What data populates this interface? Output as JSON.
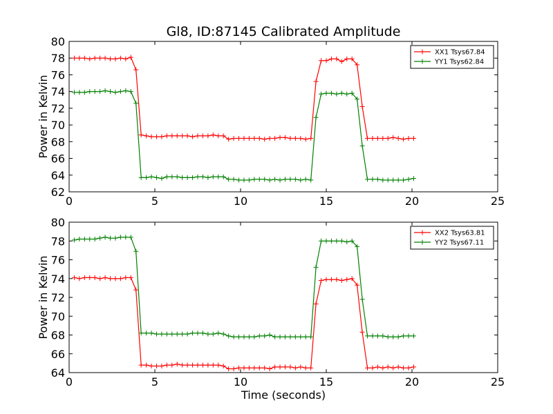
{
  "title": "Gl8, ID:87145 Calibrated Amplitude",
  "xlabel": "Time (seconds)",
  "chart_data": [
    {
      "type": "line",
      "ylabel": "Power in Kelvin",
      "xlim": [
        0,
        25
      ],
      "ylim": [
        62,
        80
      ],
      "xticks": [
        0,
        5,
        10,
        15,
        20,
        25
      ],
      "yticks": [
        62,
        64,
        66,
        68,
        70,
        72,
        74,
        76,
        78,
        80
      ],
      "legend_position": "top-right",
      "x": [
        0.3,
        0.6,
        0.9,
        1.2,
        1.5,
        1.8,
        2.1,
        2.4,
        2.7,
        3.0,
        3.3,
        3.6,
        3.9,
        4.2,
        4.5,
        4.8,
        5.1,
        5.4,
        5.7,
        6.0,
        6.3,
        6.6,
        6.9,
        7.2,
        7.5,
        7.8,
        8.1,
        8.4,
        8.7,
        9.0,
        9.3,
        9.6,
        9.9,
        10.2,
        10.5,
        10.8,
        11.1,
        11.4,
        11.7,
        12.0,
        12.3,
        12.6,
        12.9,
        13.2,
        13.5,
        13.8,
        14.1,
        14.4,
        14.7,
        15.0,
        15.3,
        15.6,
        15.9,
        16.2,
        16.5,
        16.8,
        17.1,
        17.4,
        17.7,
        18.0,
        18.3,
        18.6,
        18.9,
        19.2,
        19.5,
        19.8,
        20.1
      ],
      "series": [
        {
          "name": "XX1 Tsys67.84",
          "color": "#ff0000",
          "values": [
            78.0,
            78.0,
            78.0,
            77.9,
            78.0,
            78.0,
            78.0,
            77.9,
            77.9,
            78.0,
            77.9,
            78.1,
            76.6,
            68.8,
            68.7,
            68.6,
            68.6,
            68.6,
            68.7,
            68.7,
            68.7,
            68.7,
            68.7,
            68.6,
            68.7,
            68.7,
            68.7,
            68.8,
            68.7,
            68.7,
            68.3,
            68.4,
            68.4,
            68.4,
            68.4,
            68.4,
            68.4,
            68.3,
            68.4,
            68.4,
            68.5,
            68.5,
            68.4,
            68.4,
            68.4,
            68.3,
            68.4,
            75.2,
            77.7,
            77.7,
            77.9,
            77.9,
            77.6,
            77.9,
            77.9,
            77.2,
            72.2,
            68.4,
            68.4,
            68.4,
            68.4,
            68.4,
            68.5,
            68.4,
            68.3,
            68.4,
            68.4
          ]
        },
        {
          "name": "YY1 Tsys62.84",
          "color": "#008000",
          "values": [
            73.9,
            73.9,
            73.9,
            74.0,
            74.0,
            74.0,
            74.1,
            74.0,
            73.9,
            74.0,
            74.1,
            74.0,
            72.6,
            63.7,
            63.7,
            63.8,
            63.7,
            63.6,
            63.8,
            63.8,
            63.8,
            63.7,
            63.7,
            63.7,
            63.8,
            63.8,
            63.7,
            63.8,
            63.8,
            63.8,
            63.5,
            63.5,
            63.4,
            63.4,
            63.4,
            63.5,
            63.5,
            63.5,
            63.4,
            63.5,
            63.4,
            63.5,
            63.5,
            63.5,
            63.4,
            63.5,
            63.4,
            70.9,
            73.7,
            73.8,
            73.8,
            73.7,
            73.8,
            73.7,
            73.8,
            73.1,
            67.5,
            63.5,
            63.5,
            63.5,
            63.4,
            63.4,
            63.4,
            63.4,
            63.4,
            63.5,
            63.6
          ]
        }
      ]
    },
    {
      "type": "line",
      "ylabel": "Power in Kelvin",
      "xlim": [
        0,
        25
      ],
      "ylim": [
        64,
        80
      ],
      "xticks": [
        0,
        5,
        10,
        15,
        20,
        25
      ],
      "yticks": [
        64,
        66,
        68,
        70,
        72,
        74,
        76,
        78,
        80
      ],
      "legend_position": "top-right",
      "x": [
        0.3,
        0.6,
        0.9,
        1.2,
        1.5,
        1.8,
        2.1,
        2.4,
        2.7,
        3.0,
        3.3,
        3.6,
        3.9,
        4.2,
        4.5,
        4.8,
        5.1,
        5.4,
        5.7,
        6.0,
        6.3,
        6.6,
        6.9,
        7.2,
        7.5,
        7.8,
        8.1,
        8.4,
        8.7,
        9.0,
        9.3,
        9.6,
        9.9,
        10.2,
        10.5,
        10.8,
        11.1,
        11.4,
        11.7,
        12.0,
        12.3,
        12.6,
        12.9,
        13.2,
        13.5,
        13.8,
        14.1,
        14.4,
        14.7,
        15.0,
        15.3,
        15.6,
        15.9,
        16.2,
        16.5,
        16.8,
        17.1,
        17.4,
        17.7,
        18.0,
        18.3,
        18.6,
        18.9,
        19.2,
        19.5,
        19.8,
        20.1
      ],
      "series": [
        {
          "name": "XX2 Tsys63.81",
          "color": "#ff0000",
          "values": [
            74.1,
            74.0,
            74.1,
            74.1,
            74.1,
            74.0,
            74.1,
            74.0,
            74.0,
            74.0,
            74.1,
            74.1,
            72.8,
            64.8,
            64.8,
            64.7,
            64.7,
            64.7,
            64.8,
            64.8,
            64.9,
            64.8,
            64.8,
            64.8,
            64.8,
            64.8,
            64.8,
            64.8,
            64.8,
            64.7,
            64.4,
            64.4,
            64.5,
            64.5,
            64.5,
            64.5,
            64.5,
            64.5,
            64.4,
            64.6,
            64.6,
            64.6,
            64.6,
            64.5,
            64.6,
            64.5,
            64.5,
            71.3,
            73.8,
            73.9,
            73.9,
            73.9,
            73.8,
            73.9,
            74.0,
            73.3,
            68.3,
            64.5,
            64.5,
            64.6,
            64.5,
            64.6,
            64.5,
            64.6,
            64.5,
            64.5,
            64.6
          ]
        },
        {
          "name": "YY2 Tsys67.11",
          "color": "#008000",
          "values": [
            78.1,
            78.2,
            78.2,
            78.2,
            78.2,
            78.3,
            78.4,
            78.3,
            78.3,
            78.4,
            78.4,
            78.4,
            76.9,
            68.2,
            68.2,
            68.2,
            68.1,
            68.1,
            68.1,
            68.1,
            68.1,
            68.1,
            68.1,
            68.2,
            68.2,
            68.2,
            68.1,
            68.1,
            68.2,
            68.1,
            67.9,
            67.8,
            67.8,
            67.8,
            67.8,
            67.8,
            67.9,
            67.9,
            68.0,
            67.8,
            67.8,
            67.8,
            67.8,
            67.8,
            67.8,
            67.8,
            67.8,
            75.2,
            78.0,
            78.0,
            78.0,
            78.0,
            78.0,
            77.9,
            78.0,
            77.4,
            71.8,
            67.9,
            67.9,
            67.9,
            67.9,
            67.8,
            67.8,
            67.8,
            67.9,
            67.9,
            67.9
          ]
        }
      ]
    }
  ]
}
